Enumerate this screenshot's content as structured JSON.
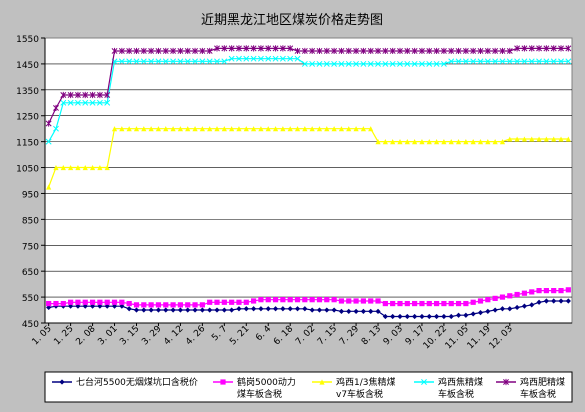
{
  "chart_data": {
    "type": "line",
    "title": "近期黑龙江地区煤炭价格走势图",
    "xlabel": "",
    "ylabel": "",
    "ylim": [
      450,
      1550
    ],
    "yticks": [
      450,
      550,
      650,
      750,
      850,
      950,
      1050,
      1150,
      1250,
      1350,
      1450,
      1550
    ],
    "grid": "horizontal",
    "legend_position": "bottom",
    "n_points": 72,
    "x_labels": [
      {
        "i": 0,
        "label": "1. 05"
      },
      {
        "i": 3,
        "label": "1. 25"
      },
      {
        "i": 6,
        "label": "2. 08"
      },
      {
        "i": 9,
        "label": "3. 01"
      },
      {
        "i": 12,
        "label": "3. 15"
      },
      {
        "i": 15,
        "label": "3. 29"
      },
      {
        "i": 18,
        "label": "4. 12"
      },
      {
        "i": 21,
        "label": "4. 26"
      },
      {
        "i": 24,
        "label": "5. 7"
      },
      {
        "i": 27,
        "label": "5. 21"
      },
      {
        "i": 30,
        "label": "6. 4"
      },
      {
        "i": 33,
        "label": "6. 18"
      },
      {
        "i": 36,
        "label": "7. 02"
      },
      {
        "i": 39,
        "label": "7. 15"
      },
      {
        "i": 42,
        "label": "7. 29"
      },
      {
        "i": 45,
        "label": "8. 13"
      },
      {
        "i": 48,
        "label": "9. 03"
      },
      {
        "i": 51,
        "label": "9. 17"
      },
      {
        "i": 54,
        "label": "10. 22"
      },
      {
        "i": 57,
        "label": "11. 05"
      },
      {
        "i": 60,
        "label": "11. 19"
      },
      {
        "i": 63,
        "label": "12. 03"
      }
    ],
    "series": [
      {
        "name": "七台河5500无烟煤坑口含税价",
        "color": "#000080",
        "marker": "diamond",
        "values": [
          510,
          515,
          515,
          515,
          515,
          515,
          515,
          515,
          515,
          515,
          515,
          505,
          500,
          500,
          500,
          500,
          500,
          500,
          500,
          500,
          500,
          500,
          500,
          500,
          500,
          500,
          505,
          505,
          505,
          505,
          505,
          505,
          505,
          505,
          505,
          505,
          500,
          500,
          500,
          500,
          495,
          495,
          495,
          495,
          495,
          495,
          475,
          475,
          475,
          475,
          475,
          475,
          475,
          475,
          475,
          475,
          480,
          480,
          485,
          490,
          495,
          500,
          505,
          505,
          510,
          515,
          520,
          530,
          535,
          535,
          535,
          535
        ]
      },
      {
        "name": "鹤岗5000动力煤车板含税",
        "color": "#ff00ff",
        "marker": "square",
        "values": [
          525,
          525,
          525,
          530,
          530,
          530,
          530,
          530,
          530,
          530,
          530,
          525,
          520,
          520,
          520,
          520,
          520,
          520,
          520,
          520,
          520,
          520,
          530,
          530,
          530,
          530,
          530,
          530,
          535,
          540,
          540,
          540,
          540,
          540,
          540,
          540,
          540,
          540,
          540,
          540,
          535,
          535,
          535,
          535,
          535,
          535,
          525,
          525,
          525,
          525,
          525,
          525,
          525,
          525,
          525,
          525,
          525,
          525,
          530,
          535,
          540,
          545,
          550,
          555,
          560,
          565,
          570,
          575,
          575,
          575,
          575,
          578
        ]
      },
      {
        "name": "鸡西1/3焦精煤v7车板含税",
        "color": "#ffff00",
        "marker": "triangle",
        "values": [
          975,
          1050,
          1050,
          1050,
          1050,
          1050,
          1050,
          1050,
          1050,
          1200,
          1200,
          1200,
          1200,
          1200,
          1200,
          1200,
          1200,
          1200,
          1200,
          1200,
          1200,
          1200,
          1200,
          1200,
          1200,
          1200,
          1200,
          1200,
          1200,
          1200,
          1200,
          1200,
          1200,
          1200,
          1200,
          1200,
          1200,
          1200,
          1200,
          1200,
          1200,
          1200,
          1200,
          1200,
          1200,
          1150,
          1150,
          1150,
          1150,
          1150,
          1150,
          1150,
          1150,
          1150,
          1150,
          1150,
          1150,
          1150,
          1150,
          1150,
          1150,
          1150,
          1150,
          1160,
          1160,
          1160,
          1160,
          1160,
          1160,
          1160,
          1160,
          1160
        ]
      },
      {
        "name": "鸡西焦精煤车板含税",
        "color": "#00ffff",
        "marker": "x",
        "values": [
          1150,
          1200,
          1300,
          1300,
          1300,
          1300,
          1300,
          1300,
          1300,
          1460,
          1460,
          1460,
          1460,
          1460,
          1460,
          1460,
          1460,
          1460,
          1460,
          1460,
          1460,
          1460,
          1460,
          1460,
          1460,
          1470,
          1470,
          1470,
          1470,
          1470,
          1470,
          1470,
          1470,
          1470,
          1470,
          1450,
          1450,
          1450,
          1450,
          1450,
          1450,
          1450,
          1450,
          1450,
          1450,
          1450,
          1450,
          1450,
          1450,
          1450,
          1450,
          1450,
          1450,
          1450,
          1450,
          1460,
          1460,
          1460,
          1460,
          1460,
          1460,
          1460,
          1460,
          1460,
          1460,
          1460,
          1460,
          1460,
          1460,
          1460,
          1460,
          1460
        ]
      },
      {
        "name": "鸡西肥精煤车板含税",
        "color": "#800080",
        "marker": "asterisk",
        "values": [
          1220,
          1280,
          1330,
          1330,
          1330,
          1330,
          1330,
          1330,
          1330,
          1500,
          1500,
          1500,
          1500,
          1500,
          1500,
          1500,
          1500,
          1500,
          1500,
          1500,
          1500,
          1500,
          1500,
          1510,
          1510,
          1510,
          1510,
          1510,
          1510,
          1510,
          1510,
          1510,
          1510,
          1510,
          1500,
          1500,
          1500,
          1500,
          1500,
          1500,
          1500,
          1500,
          1500,
          1500,
          1500,
          1500,
          1500,
          1500,
          1500,
          1500,
          1500,
          1500,
          1500,
          1500,
          1500,
          1500,
          1500,
          1500,
          1500,
          1500,
          1500,
          1500,
          1500,
          1500,
          1510,
          1510,
          1510,
          1510,
          1510,
          1510,
          1510,
          1510
        ]
      }
    ],
    "legend_labels": [
      [
        "七台河5500无烟煤坑口含税价"
      ],
      [
        "鹤岗5000动力",
        "煤车板含税"
      ],
      [
        "鸡西1/3焦精煤",
        "v7车板含税"
      ],
      [
        "鸡西焦精煤",
        "车板含税"
      ],
      [
        "鸡西肥精煤",
        "车板含税"
      ]
    ]
  }
}
